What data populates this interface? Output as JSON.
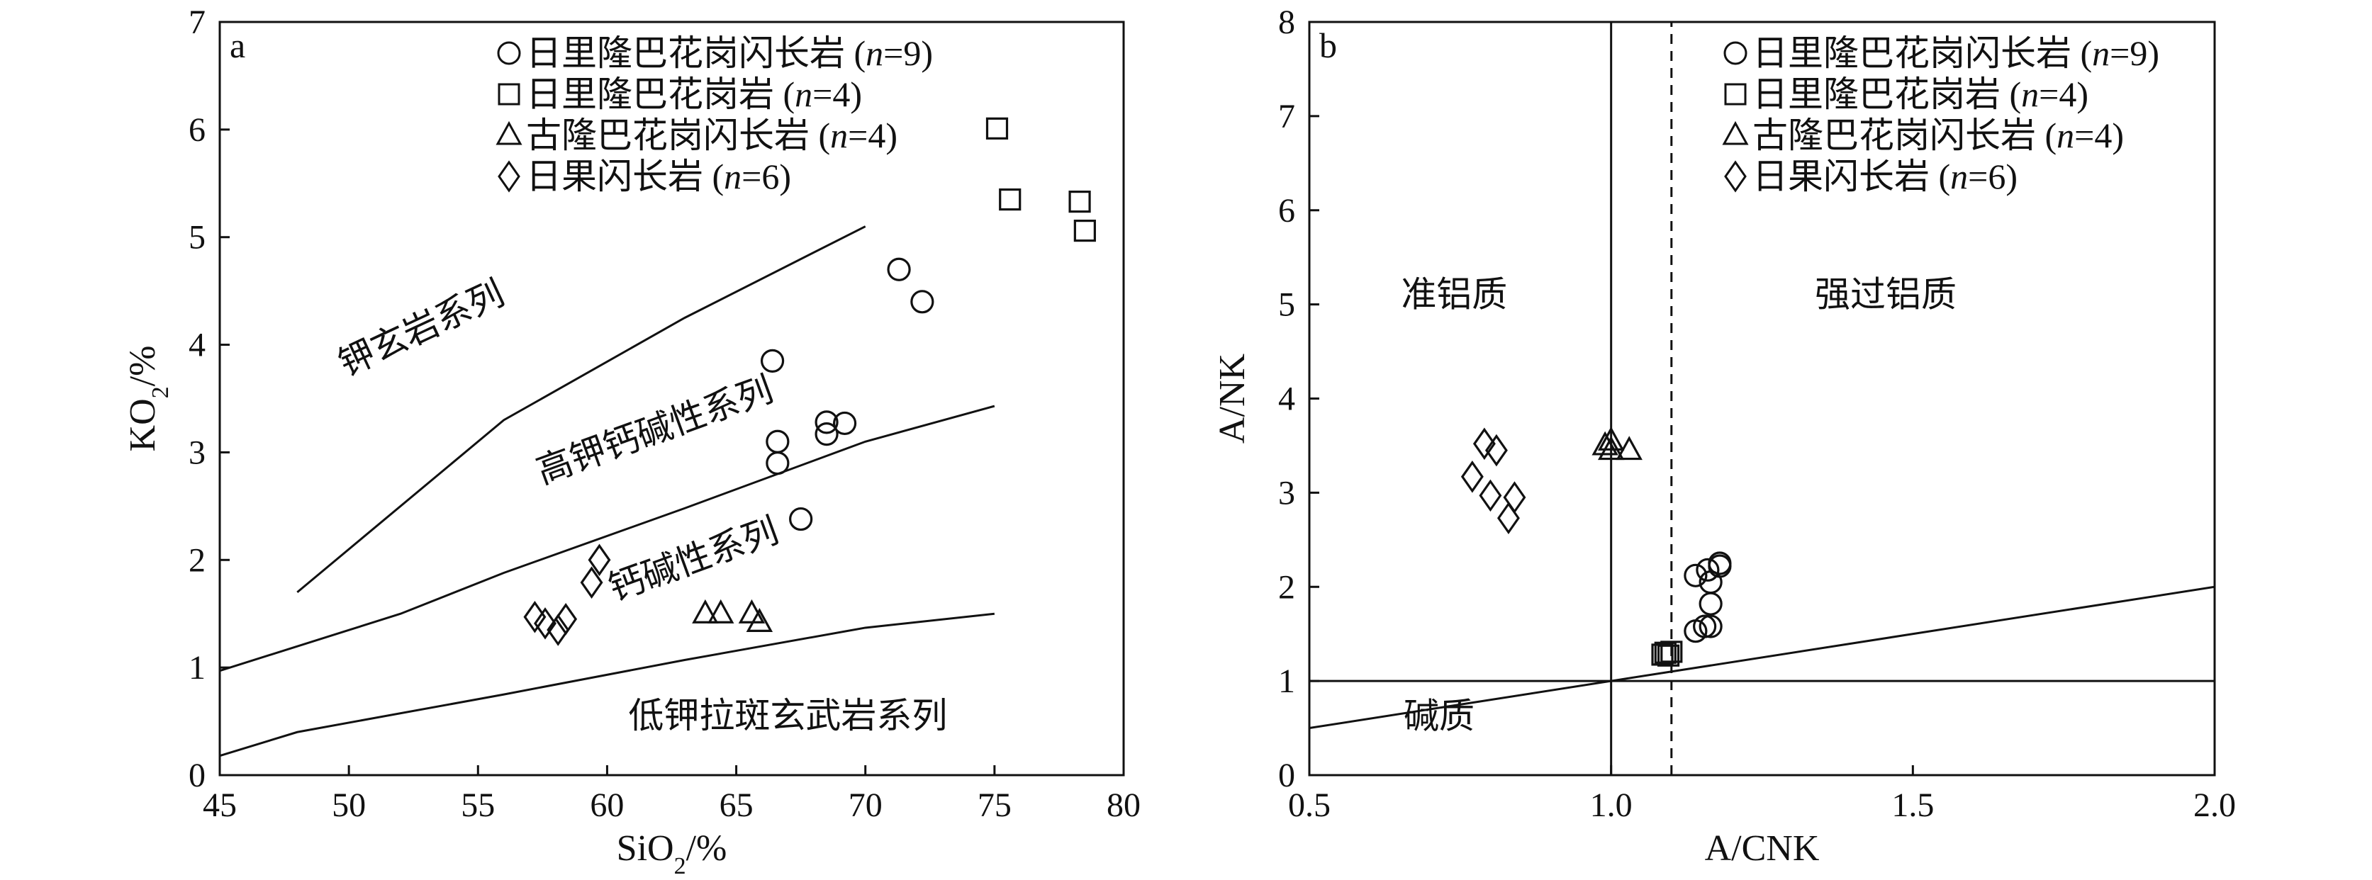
{
  "chart_data": [
    {
      "panel_label": "a",
      "type": "scatter",
      "xlabel_main": "SiO",
      "xlabel_sub": "2",
      "xlabel_unit": "/%",
      "ylabel_main": "KO",
      "ylabel_sub": "2",
      "ylabel_unit": "/%",
      "xlim": [
        45,
        80
      ],
      "ylim": [
        0,
        7
      ],
      "xticks": [
        45,
        50,
        55,
        60,
        65,
        70,
        75,
        80
      ],
      "yticks": [
        0,
        1,
        2,
        3,
        4,
        5,
        6,
        7
      ],
      "legend_position": "top-right",
      "boundary_lines": [
        {
          "points": [
            [
              48,
              1.7
            ],
            [
              56,
              3.3
            ],
            [
              63,
              4.25
            ],
            [
              70,
              5.1
            ]
          ]
        },
        {
          "points": [
            [
              45,
              0.97
            ],
            [
              52,
              1.5
            ],
            [
              56,
              1.88
            ],
            [
              63,
              2.48
            ],
            [
              70,
              3.1
            ],
            [
              75,
              3.43
            ]
          ]
        },
        {
          "points": [
            [
              45,
              0.18
            ],
            [
              48,
              0.4
            ],
            [
              56,
              0.75
            ],
            [
              63,
              1.07
            ],
            [
              70,
              1.37
            ],
            [
              75,
              1.5
            ]
          ]
        }
      ],
      "region_labels": [
        {
          "text": "钾玄岩系列",
          "x": 53,
          "y": 4.05,
          "angle": -25
        },
        {
          "text": "高钾钙碱性系列",
          "x": 62,
          "y": 3.1,
          "angle": -20
        },
        {
          "text": "钙碱性系列",
          "x": 63.5,
          "y": 1.9,
          "angle": -20
        },
        {
          "text": "低钾拉斑玄武岩系列",
          "x": 67,
          "y": 0.44,
          "angle": 0
        }
      ],
      "series": [
        {
          "name": "日里隆巴花岗闪长岩",
          "n_label": "(n=9)",
          "marker": "circle",
          "x": [
            71.3,
            72.2,
            66.4,
            66.6,
            66.6,
            68.5,
            68.5,
            69.2,
            67.5
          ],
          "y": [
            4.7,
            4.4,
            3.85,
            3.1,
            2.9,
            3.28,
            3.17,
            3.27,
            2.38
          ]
        },
        {
          "name": "日里隆巴花岗岩",
          "n_label": "(n=4)",
          "marker": "square",
          "x": [
            75.1,
            75.6,
            78.3,
            78.5
          ],
          "y": [
            6.01,
            5.35,
            5.33,
            5.06
          ]
        },
        {
          "name": "古隆巴花岗闪长岩",
          "n_label": "(n=4)",
          "marker": "triangle",
          "x": [
            63.8,
            64.4,
            65.6,
            65.9
          ],
          "y": [
            1.5,
            1.5,
            1.5,
            1.42
          ]
        },
        {
          "name": "日果闪长岩",
          "n_label": "(n=6)",
          "marker": "diamond",
          "x": [
            57.2,
            57.6,
            58.1,
            58.4,
            59.4,
            59.7
          ],
          "y": [
            1.47,
            1.41,
            1.35,
            1.45,
            1.79,
            2.0
          ]
        }
      ]
    },
    {
      "panel_label": "b",
      "type": "scatter",
      "xlabel": "A/CNK",
      "ylabel": "A/NK",
      "xlim": [
        0.5,
        2.0
      ],
      "ylim": [
        0,
        8
      ],
      "xticks": [
        "0.5",
        "1.0",
        "1.5",
        "2.0"
      ],
      "yticks": [
        0,
        1,
        2,
        3,
        4,
        5,
        6,
        7,
        8
      ],
      "legend_position": "top-right",
      "reference_lines": [
        {
          "style": "solid",
          "points": [
            [
              1.0,
              0
            ],
            [
              1.0,
              8
            ]
          ]
        },
        {
          "style": "dashed",
          "points": [
            [
              1.1,
              0
            ],
            [
              1.1,
              8
            ]
          ]
        },
        {
          "style": "solid",
          "points": [
            [
              0.5,
              1.0
            ],
            [
              2.0,
              1.0
            ]
          ]
        },
        {
          "style": "solid",
          "points": [
            [
              0.5,
              0.5
            ],
            [
              2.0,
              2.0
            ]
          ]
        }
      ],
      "region_labels": [
        {
          "text": "准铝质",
          "x": 0.74,
          "y": 4.98
        },
        {
          "text": "强过铝质",
          "x": 1.455,
          "y": 4.98
        },
        {
          "text": "碱质",
          "x": 0.715,
          "y": 0.5
        }
      ],
      "series": [
        {
          "name": "日里隆巴花岗闪长岩",
          "n_label": "(n=9)",
          "marker": "circle",
          "x": [
            1.18,
            1.18,
            1.16,
            1.14,
            1.165,
            1.165,
            1.165,
            1.155,
            1.14
          ],
          "y": [
            2.25,
            2.22,
            2.18,
            2.12,
            2.05,
            1.82,
            1.58,
            1.58,
            1.53
          ]
        },
        {
          "name": "日里隆巴花岗岩",
          "n_label": "(n=4)",
          "marker": "square",
          "x": [
            1.085,
            1.09,
            1.095,
            1.1
          ],
          "y": [
            1.28,
            1.3,
            1.27,
            1.31
          ]
        },
        {
          "name": "古隆巴花岗闪长岩",
          "n_label": "(n=4)",
          "marker": "triangle",
          "x": [
            0.99,
            1.0,
            1.0,
            1.03
          ],
          "y": [
            3.5,
            3.55,
            3.45,
            3.45
          ]
        },
        {
          "name": "日果闪长岩",
          "n_label": "(n=6)",
          "marker": "diamond",
          "x": [
            0.79,
            0.81,
            0.77,
            0.8,
            0.84,
            0.83
          ],
          "y": [
            3.52,
            3.45,
            3.17,
            2.97,
            2.95,
            2.73
          ]
        }
      ]
    }
  ]
}
